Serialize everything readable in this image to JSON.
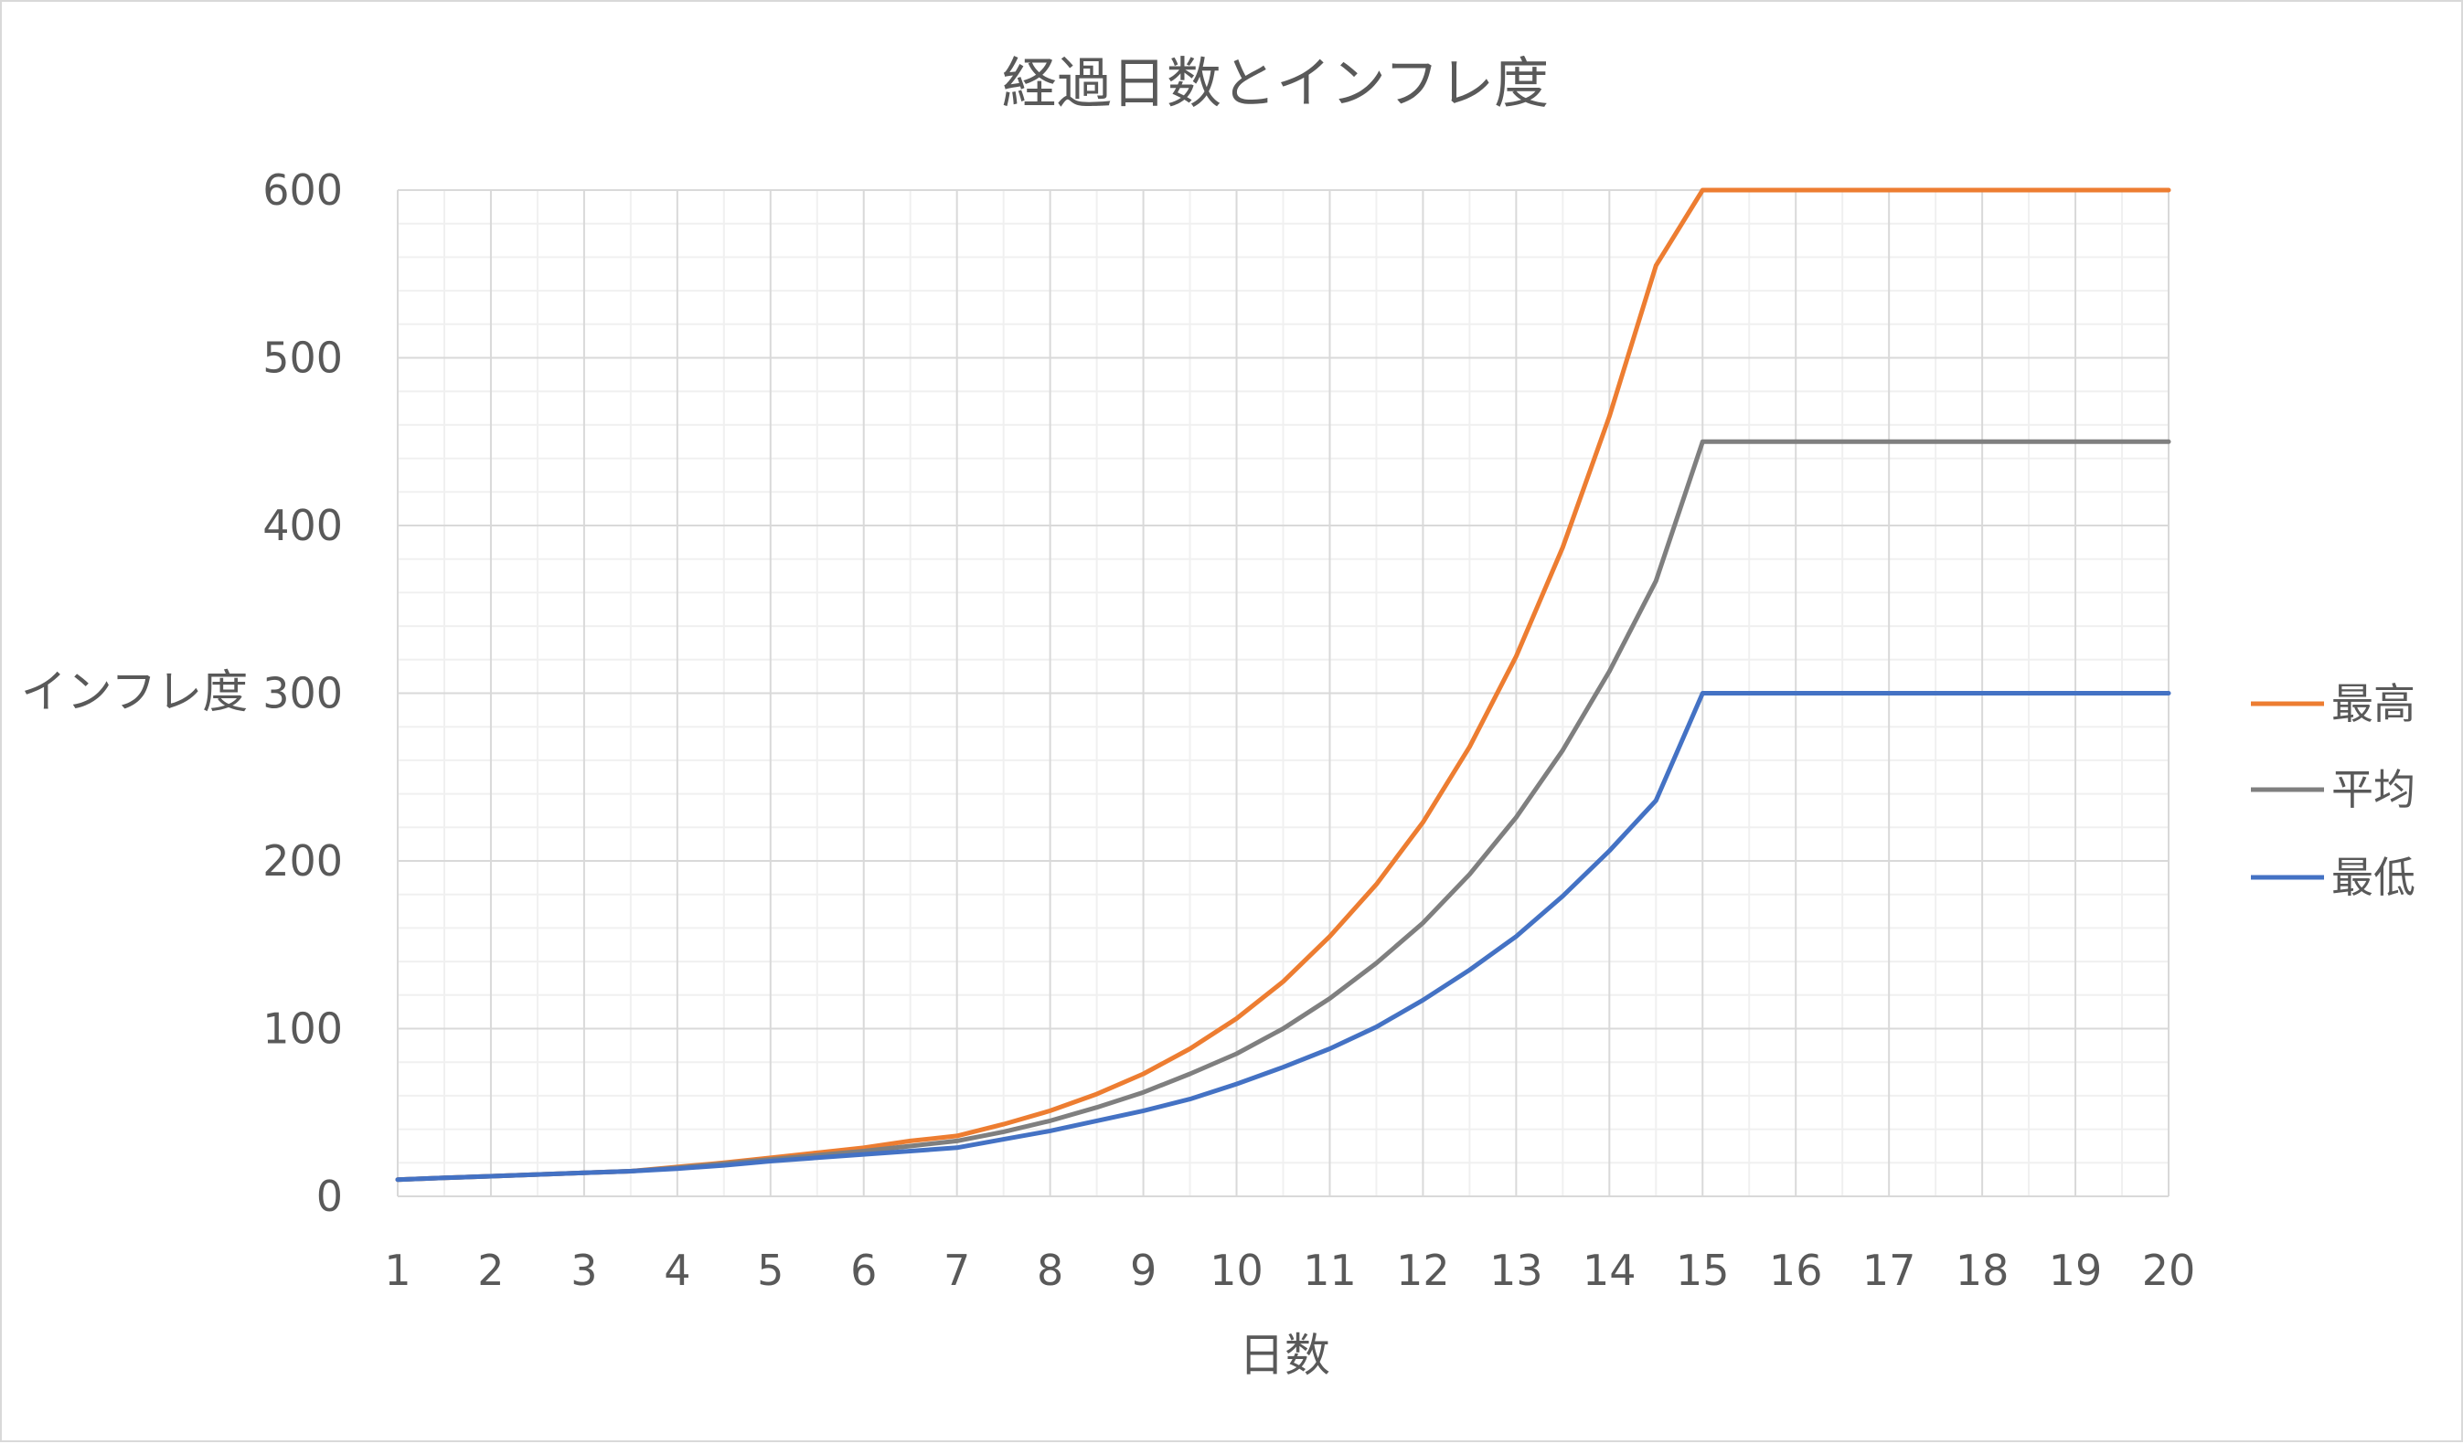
{
  "chart_data": {
    "type": "line",
    "title": "経過日数とインフレ度",
    "xlabel": "日数",
    "ylabel": "インフレ度",
    "xlim": [
      1,
      20
    ],
    "ylim": [
      0,
      600
    ],
    "x_ticks": [
      1,
      2,
      3,
      4,
      5,
      6,
      7,
      8,
      9,
      10,
      11,
      12,
      13,
      14,
      15,
      16,
      17,
      18,
      19,
      20
    ],
    "y_ticks": [
      0,
      100,
      200,
      300,
      400,
      500,
      600
    ],
    "grid": {
      "major": true,
      "minor": true
    },
    "legend_position": "right",
    "series": [
      {
        "name": "最高",
        "color": "#ED7D31",
        "points": [
          [
            1,
            10
          ],
          [
            1.5,
            11
          ],
          [
            2,
            12
          ],
          [
            2.5,
            13
          ],
          [
            3,
            14
          ],
          [
            3.5,
            15
          ],
          [
            4,
            17.5
          ],
          [
            4.5,
            20
          ],
          [
            5,
            23
          ],
          [
            5.5,
            26
          ],
          [
            6,
            29
          ],
          [
            6.5,
            33
          ],
          [
            7,
            36
          ],
          [
            7.5,
            43
          ],
          [
            8,
            51
          ],
          [
            8.5,
            61
          ],
          [
            9,
            73
          ],
          [
            9.5,
            88
          ],
          [
            10,
            106
          ],
          [
            10.5,
            128
          ],
          [
            11,
            155
          ],
          [
            11.5,
            186
          ],
          [
            12,
            223
          ],
          [
            12.5,
            268
          ],
          [
            13,
            322
          ],
          [
            13.5,
            387
          ],
          [
            14,
            465
          ],
          [
            14.5,
            555
          ],
          [
            15,
            600
          ],
          [
            20,
            600
          ]
        ]
      },
      {
        "name": "平均",
        "color": "#7F7F7F",
        "points": [
          [
            1,
            10
          ],
          [
            1.5,
            11
          ],
          [
            2,
            12
          ],
          [
            2.5,
            13
          ],
          [
            3,
            14
          ],
          [
            3.5,
            15
          ],
          [
            4,
            17
          ],
          [
            4.5,
            19.5
          ],
          [
            5,
            22
          ],
          [
            5.5,
            24.5
          ],
          [
            6,
            27
          ],
          [
            6.5,
            30
          ],
          [
            7,
            33
          ],
          [
            7.5,
            38.5
          ],
          [
            8,
            45
          ],
          [
            8.5,
            53
          ],
          [
            9,
            62
          ],
          [
            9.5,
            73
          ],
          [
            10,
            85
          ],
          [
            10.5,
            100
          ],
          [
            11,
            118
          ],
          [
            11.5,
            139
          ],
          [
            12,
            163
          ],
          [
            12.5,
            192
          ],
          [
            13,
            226
          ],
          [
            13.5,
            266
          ],
          [
            14,
            313
          ],
          [
            14.5,
            367
          ],
          [
            15,
            450
          ],
          [
            20,
            450
          ]
        ]
      },
      {
        "name": "最低",
        "color": "#4472C4",
        "points": [
          [
            1,
            10
          ],
          [
            1.5,
            11
          ],
          [
            2,
            12
          ],
          [
            2.5,
            13
          ],
          [
            3,
            14
          ],
          [
            3.5,
            15
          ],
          [
            4,
            16.5
          ],
          [
            4.5,
            18.5
          ],
          [
            5,
            21
          ],
          [
            5.5,
            23
          ],
          [
            6,
            25
          ],
          [
            6.5,
            27
          ],
          [
            7,
            29
          ],
          [
            7.5,
            34
          ],
          [
            8,
            39
          ],
          [
            8.5,
            45
          ],
          [
            9,
            51
          ],
          [
            9.5,
            58
          ],
          [
            10,
            67
          ],
          [
            10.5,
            77
          ],
          [
            11,
            88
          ],
          [
            11.5,
            101
          ],
          [
            12,
            117
          ],
          [
            12.5,
            135
          ],
          [
            13,
            155
          ],
          [
            13.5,
            179
          ],
          [
            14,
            206
          ],
          [
            14.5,
            236
          ],
          [
            15,
            300
          ],
          [
            20,
            300
          ]
        ]
      }
    ]
  }
}
